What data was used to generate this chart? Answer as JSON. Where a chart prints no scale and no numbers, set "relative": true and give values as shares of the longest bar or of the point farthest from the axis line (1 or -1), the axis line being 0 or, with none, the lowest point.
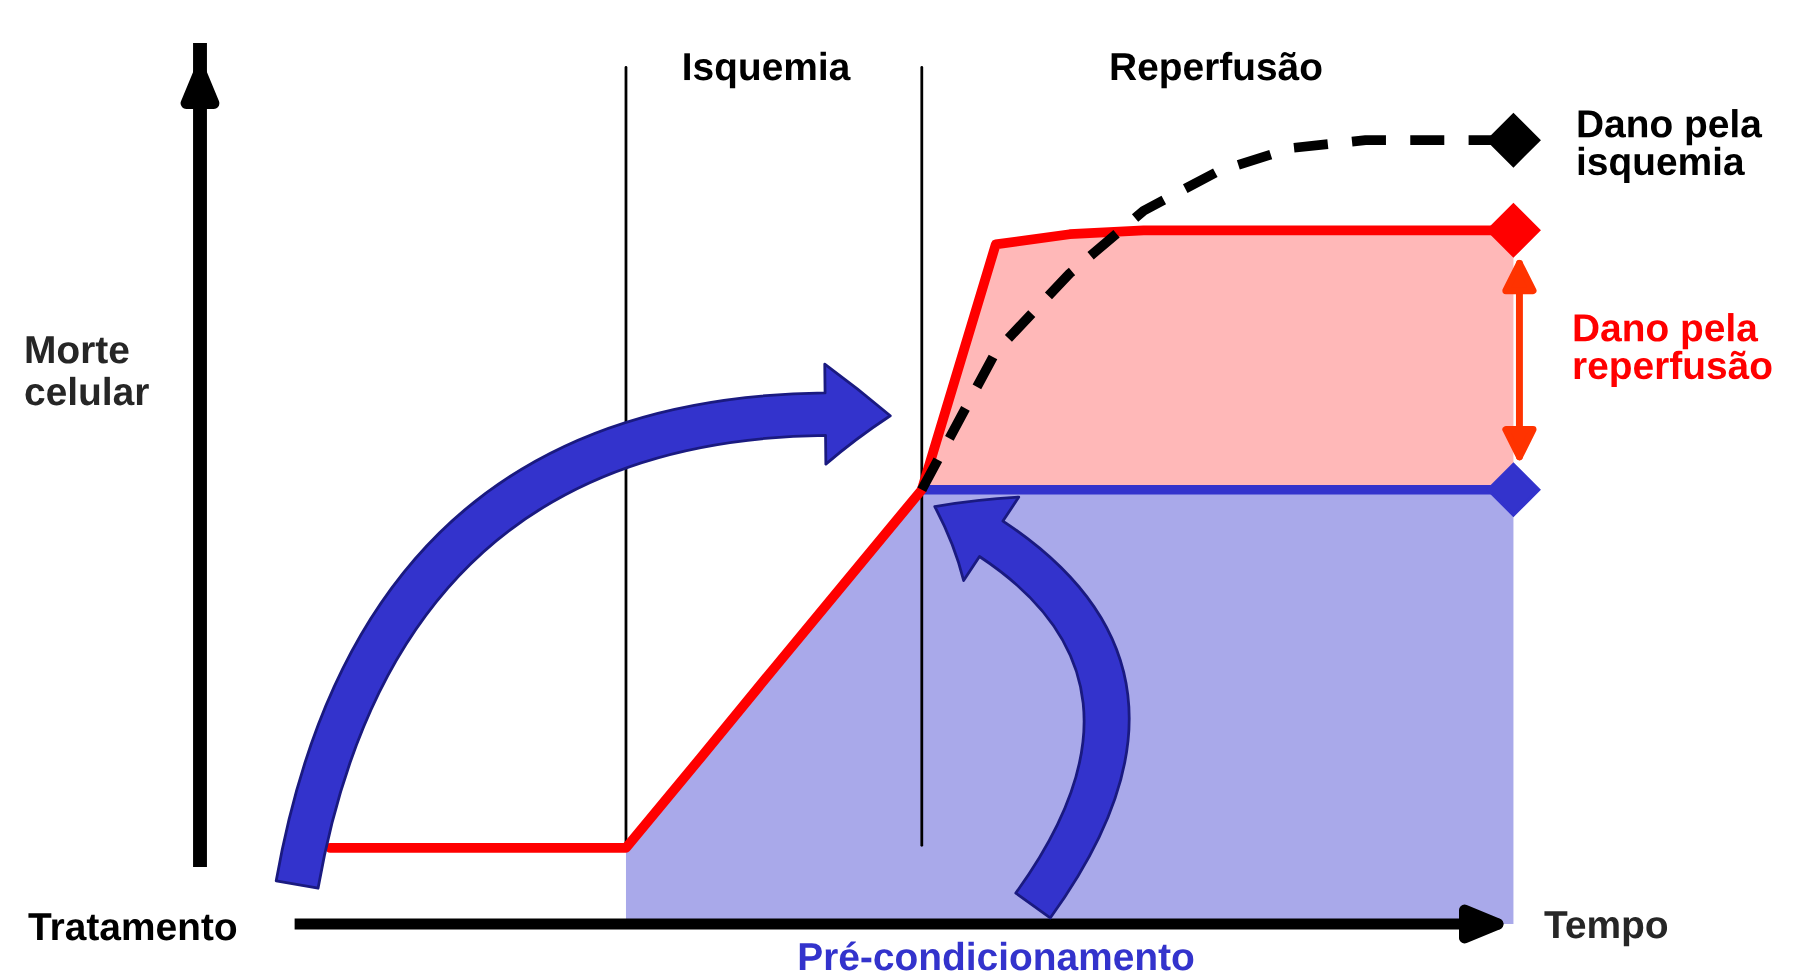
{
  "chart_data": {
    "type": "line",
    "relative": true,
    "xlabel": "Tempo",
    "ylabel": "Morte\ncelular",
    "categories": [
      null,
      null,
      null,
      null,
      null,
      null,
      null,
      null,
      null,
      null,
      null,
      null,
      null,
      null,
      null,
      null,
      null
    ],
    "series": [
      {
        "color": "#3333cc",
        "values": [
          null,
          null,
          null,
          null,
          null,
          null,
          null,
          null,
          0.554,
          0.554,
          0.554,
          0.554,
          0.554,
          0.554,
          0.554,
          0.554,
          0.554
        ],
        "lower": [
          null,
          null,
          null,
          null,
          0,
          0,
          0,
          0,
          0,
          0,
          0,
          0,
          0,
          0,
          0,
          0,
          0
        ],
        "upper": [
          null,
          null,
          null,
          null,
          0.097,
          0.211,
          0.326,
          0.44,
          0.554,
          0.554,
          0.554,
          0.554,
          0.554,
          0.554,
          0.554,
          0.554,
          0.554
        ]
      },
      {
        "color": "#ff0000",
        "values": [
          0.097,
          0.097,
          0.097,
          0.097,
          0.097,
          0.211,
          0.326,
          0.44,
          0.554,
          0.867,
          0.88,
          0.885,
          0.885,
          0.885,
          0.885,
          0.885,
          0.885
        ],
        "lower": [
          null,
          null,
          null,
          null,
          null,
          null,
          null,
          null,
          0.554,
          0.554,
          0.554,
          0.554,
          0.554,
          0.554,
          0.554,
          0.554,
          0.554
        ],
        "upper": [
          null,
          null,
          null,
          null,
          null,
          null,
          null,
          null,
          0.554,
          0.867,
          0.88,
          0.885,
          0.885,
          0.885,
          0.885,
          0.885,
          0.885
        ]
      },
      {
        "color": "#000000",
        "line_style": "dashed",
        "values": [
          null,
          null,
          null,
          null,
          null,
          null,
          null,
          null,
          0.554,
          0.73,
          0.83,
          0.91,
          0.96,
          0.99,
          1.0,
          1.0,
          1.0
        ]
      }
    ],
    "annotations": [
      "Isquemia",
      "Reperfusão",
      "Dano pela\nisquemia",
      "Dano pela\nreperfusão",
      "Tratamento",
      "Pré-condicionamento"
    ]
  }
}
